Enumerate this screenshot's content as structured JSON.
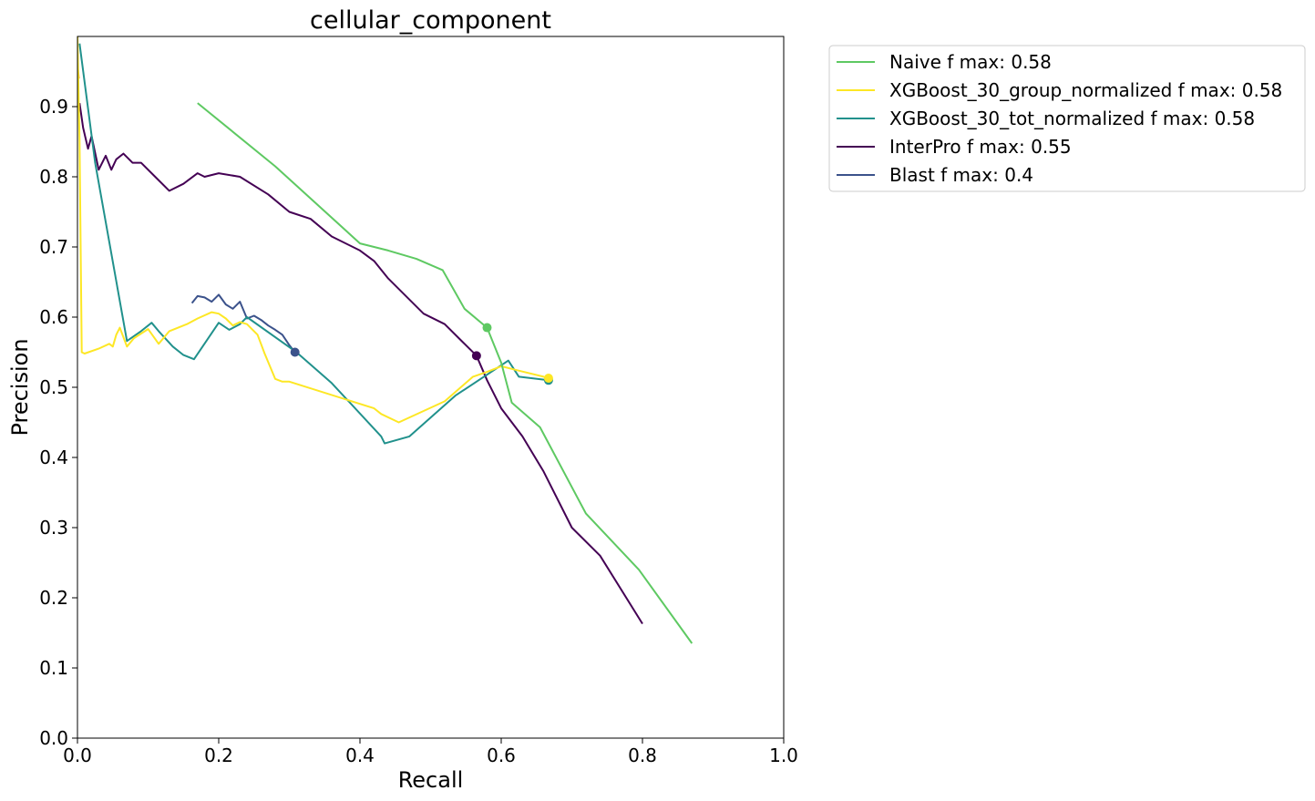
{
  "chart_data": {
    "type": "line",
    "title": "cellular_component",
    "xlabel": "Recall",
    "ylabel": "Precision",
    "xlim": [
      0.0,
      1.0
    ],
    "ylim": [
      0.0,
      1.0
    ],
    "xticks": [
      "0.0",
      "0.2",
      "0.4",
      "0.6",
      "0.8",
      "1.0"
    ],
    "yticks": [
      "0.0",
      "0.1",
      "0.2",
      "0.3",
      "0.4",
      "0.5",
      "0.6",
      "0.7",
      "0.8",
      "0.9"
    ],
    "grid": false,
    "legend_position": "outside-upper-right",
    "series": [
      {
        "name": "Naive f max: 0.58",
        "color": "#5ec962",
        "x": [
          0.17,
          0.28,
          0.4,
          0.44,
          0.48,
          0.517,
          0.548,
          0.58,
          0.6,
          0.615,
          0.655,
          0.72,
          0.795,
          0.87
        ],
        "y": [
          0.905,
          0.815,
          0.705,
          0.695,
          0.683,
          0.667,
          0.612,
          0.585,
          0.535,
          0.478,
          0.443,
          0.32,
          0.24,
          0.135
        ],
        "fmax_point": [
          0.58,
          0.585
        ]
      },
      {
        "name": "XGBoost_30_group_normalized f max: 0.58",
        "color": "#fde725",
        "x": [
          0.0,
          0.003,
          0.006,
          0.01,
          0.03,
          0.045,
          0.05,
          0.055,
          0.06,
          0.07,
          0.08,
          0.1,
          0.115,
          0.13,
          0.155,
          0.17,
          0.19,
          0.2,
          0.21,
          0.22,
          0.23,
          0.24,
          0.255,
          0.265,
          0.28,
          0.29,
          0.3,
          0.42,
          0.43,
          0.455,
          0.52,
          0.56,
          0.58,
          0.6,
          0.62,
          0.66,
          0.667
        ],
        "y": [
          1.0,
          0.85,
          0.55,
          0.548,
          0.555,
          0.562,
          0.558,
          0.575,
          0.585,
          0.558,
          0.57,
          0.583,
          0.562,
          0.58,
          0.59,
          0.598,
          0.607,
          0.605,
          0.598,
          0.588,
          0.593,
          0.59,
          0.575,
          0.548,
          0.512,
          0.508,
          0.508,
          0.47,
          0.462,
          0.45,
          0.48,
          0.515,
          0.522,
          0.53,
          0.525,
          0.515,
          0.513
        ],
        "fmax_point": [
          0.667,
          0.513
        ]
      },
      {
        "name": "XGBoost_30_tot_normalized f max: 0.58",
        "color": "#21918c",
        "x": [
          0.003,
          0.025,
          0.07,
          0.09,
          0.105,
          0.115,
          0.135,
          0.15,
          0.165,
          0.2,
          0.215,
          0.23,
          0.24,
          0.31,
          0.36,
          0.43,
          0.435,
          0.47,
          0.535,
          0.61,
          0.625,
          0.667
        ],
        "y": [
          0.99,
          0.82,
          0.566,
          0.58,
          0.592,
          0.58,
          0.558,
          0.546,
          0.54,
          0.592,
          0.582,
          0.59,
          0.6,
          0.55,
          0.506,
          0.43,
          0.42,
          0.43,
          0.488,
          0.538,
          0.515,
          0.51
        ],
        "fmax_point": [
          0.667,
          0.51
        ]
      },
      {
        "name": "InterPro f max: 0.55",
        "color": "#440154",
        "x": [
          0.003,
          0.008,
          0.015,
          0.02,
          0.03,
          0.04,
          0.048,
          0.055,
          0.065,
          0.078,
          0.09,
          0.11,
          0.13,
          0.15,
          0.17,
          0.18,
          0.2,
          0.23,
          0.27,
          0.3,
          0.33,
          0.36,
          0.4,
          0.42,
          0.44,
          0.49,
          0.52,
          0.545,
          0.565,
          0.58,
          0.6,
          0.63,
          0.66,
          0.7,
          0.74,
          0.8
        ],
        "y": [
          0.905,
          0.87,
          0.84,
          0.858,
          0.81,
          0.83,
          0.81,
          0.825,
          0.833,
          0.82,
          0.82,
          0.8,
          0.78,
          0.79,
          0.805,
          0.8,
          0.805,
          0.8,
          0.775,
          0.75,
          0.74,
          0.715,
          0.695,
          0.68,
          0.655,
          0.605,
          0.59,
          0.565,
          0.545,
          0.51,
          0.47,
          0.43,
          0.38,
          0.3,
          0.26,
          0.163
        ],
        "fmax_point": [
          0.565,
          0.545
        ]
      },
      {
        "name": "Blast f max: 0.4",
        "color": "#3b528b",
        "x": [
          0.162,
          0.17,
          0.18,
          0.19,
          0.2,
          0.21,
          0.22,
          0.23,
          0.24,
          0.25,
          0.26,
          0.27,
          0.28,
          0.29,
          0.3,
          0.308
        ],
        "y": [
          0.62,
          0.63,
          0.628,
          0.622,
          0.632,
          0.618,
          0.612,
          0.622,
          0.598,
          0.602,
          0.596,
          0.588,
          0.582,
          0.575,
          0.56,
          0.55
        ],
        "fmax_point": [
          0.308,
          0.55
        ]
      }
    ],
    "extra_marks": [
      {
        "color": "#f39c12",
        "x": [
          0.0,
          0.002
        ],
        "y": [
          0.96,
          0.94
        ]
      }
    ]
  }
}
